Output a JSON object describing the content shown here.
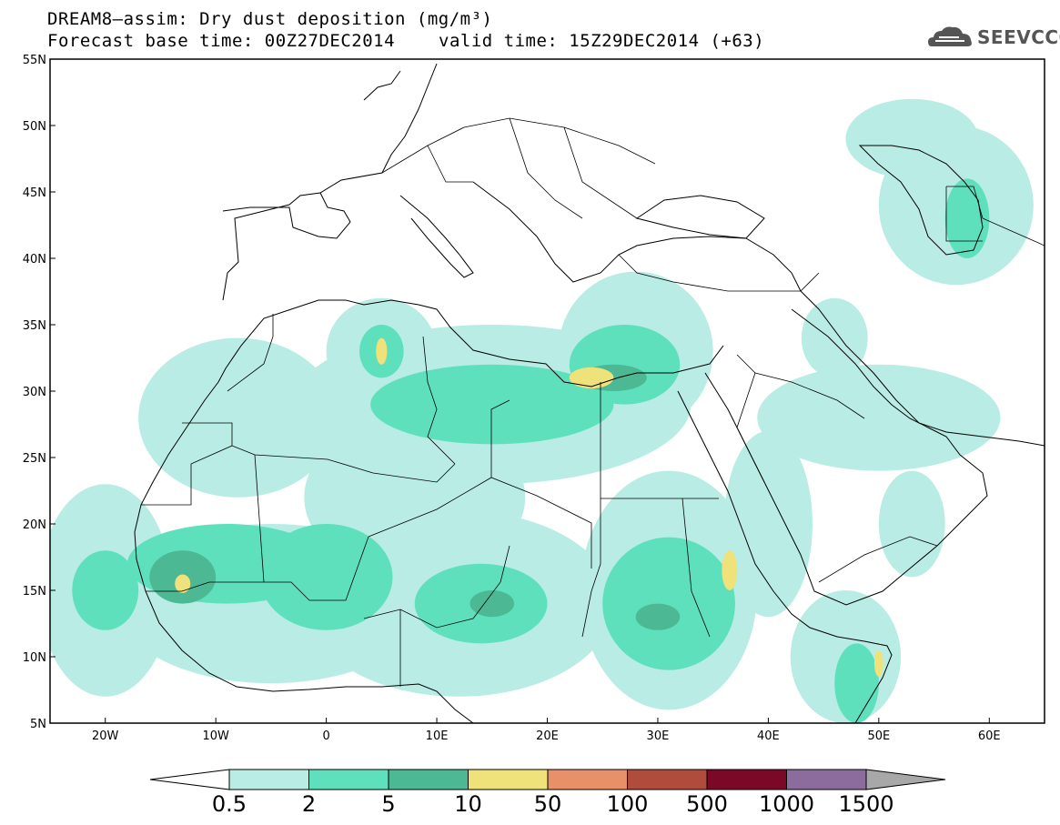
{
  "title": {
    "line1": "DREAM8–assim: Dry dust deposition (mg/m³)",
    "base_time": "Forecast base time: 00Z27DEC2014",
    "valid_time": "valid time: 15Z29DEC2014 (+63)"
  },
  "logo": {
    "text": "SEEVCCC",
    "icon": "cloud-icon"
  },
  "map": {
    "lon_range": [
      -25,
      65
    ],
    "lat_range": [
      5,
      55
    ],
    "lat_ticks": [
      {
        "value": 55,
        "label": "55N"
      },
      {
        "value": 50,
        "label": "50N"
      },
      {
        "value": 45,
        "label": "45N"
      },
      {
        "value": 40,
        "label": "40N"
      },
      {
        "value": 35,
        "label": "35N"
      },
      {
        "value": 30,
        "label": "30N"
      },
      {
        "value": 25,
        "label": "25N"
      },
      {
        "value": 20,
        "label": "20N"
      },
      {
        "value": 15,
        "label": "15N"
      },
      {
        "value": 10,
        "label": "10N"
      },
      {
        "value": 5,
        "label": "5N"
      }
    ],
    "lon_ticks": [
      {
        "value": -20,
        "label": "20W"
      },
      {
        "value": -10,
        "label": "10W"
      },
      {
        "value": 0,
        "label": "0"
      },
      {
        "value": 10,
        "label": "10E"
      },
      {
        "value": 20,
        "label": "20E"
      },
      {
        "value": 30,
        "label": "30E"
      },
      {
        "value": 40,
        "label": "40E"
      },
      {
        "value": 50,
        "label": "50E"
      },
      {
        "value": 60,
        "label": "60E"
      }
    ],
    "palette": [
      "#b8ece4",
      "#5fe0bc",
      "#4cb894",
      "#f0e27a"
    ],
    "fields": [
      {
        "level": 0,
        "cx": -20,
        "cy": 15,
        "rx": 6,
        "ry": 8
      },
      {
        "level": 0,
        "cx": -5,
        "cy": 14,
        "rx": 14,
        "ry": 6
      },
      {
        "level": 0,
        "cx": 12,
        "cy": 14,
        "rx": 14,
        "ry": 7
      },
      {
        "level": 0,
        "cx": 8,
        "cy": 22,
        "rx": 10,
        "ry": 6
      },
      {
        "level": 0,
        "cx": 15,
        "cy": 29,
        "rx": 18,
        "ry": 6
      },
      {
        "level": 0,
        "cx": -8,
        "cy": 28,
        "rx": 9,
        "ry": 6
      },
      {
        "level": 0,
        "cx": 5,
        "cy": 33,
        "rx": 5,
        "ry": 4
      },
      {
        "level": 0,
        "cx": 28,
        "cy": 33,
        "rx": 7,
        "ry": 6
      },
      {
        "level": 0,
        "cx": 31,
        "cy": 15,
        "rx": 8,
        "ry": 9
      },
      {
        "level": 0,
        "cx": 47,
        "cy": 10,
        "rx": 5,
        "ry": 5
      },
      {
        "level": 0,
        "cx": 40,
        "cy": 20,
        "rx": 4,
        "ry": 7
      },
      {
        "level": 0,
        "cx": 50,
        "cy": 28,
        "rx": 11,
        "ry": 4
      },
      {
        "level": 0,
        "cx": 46,
        "cy": 34,
        "rx": 3,
        "ry": 3
      },
      {
        "level": 0,
        "cx": 57,
        "cy": 44,
        "rx": 7,
        "ry": 6
      },
      {
        "level": 0,
        "cx": 53,
        "cy": 49,
        "rx": 6,
        "ry": 3
      },
      {
        "level": 0,
        "cx": 53,
        "cy": 20,
        "rx": 3,
        "ry": 4
      },
      {
        "level": 1,
        "cx": -20,
        "cy": 15,
        "rx": 3,
        "ry": 3
      },
      {
        "level": 1,
        "cx": -9,
        "cy": 17,
        "rx": 9,
        "ry": 3
      },
      {
        "level": 1,
        "cx": 0,
        "cy": 16,
        "rx": 6,
        "ry": 4
      },
      {
        "level": 1,
        "cx": 14,
        "cy": 14,
        "rx": 6,
        "ry": 3
      },
      {
        "level": 1,
        "cx": 15,
        "cy": 29,
        "rx": 11,
        "ry": 3
      },
      {
        "level": 1,
        "cx": 27,
        "cy": 32,
        "rx": 5,
        "ry": 3
      },
      {
        "level": 1,
        "cx": 5,
        "cy": 33,
        "rx": 2,
        "ry": 2
      },
      {
        "level": 1,
        "cx": 31,
        "cy": 14,
        "rx": 6,
        "ry": 5
      },
      {
        "level": 1,
        "cx": 48,
        "cy": 8,
        "rx": 2,
        "ry": 3
      },
      {
        "level": 1,
        "cx": 58,
        "cy": 43,
        "rx": 2,
        "ry": 3
      },
      {
        "level": 2,
        "cx": -13,
        "cy": 16,
        "rx": 3,
        "ry": 2
      },
      {
        "level": 2,
        "cx": 30,
        "cy": 13,
        "rx": 2,
        "ry": 1
      },
      {
        "level": 2,
        "cx": 15,
        "cy": 14,
        "rx": 2,
        "ry": 1
      },
      {
        "level": 2,
        "cx": 26,
        "cy": 31,
        "rx": 3,
        "ry": 1
      },
      {
        "level": 3,
        "cx": 5,
        "cy": 33,
        "rx": 0.5,
        "ry": 1
      },
      {
        "level": 3,
        "cx": 24,
        "cy": 31,
        "rx": 2,
        "ry": 0.8
      },
      {
        "level": 3,
        "cx": -13,
        "cy": 15.5,
        "rx": 0.7,
        "ry": 0.7
      },
      {
        "level": 3,
        "cx": 36.5,
        "cy": 16.5,
        "rx": 0.7,
        "ry": 1.5
      },
      {
        "level": 3,
        "cx": 50,
        "cy": 9.5,
        "rx": 0.4,
        "ry": 1
      }
    ]
  },
  "colorbar": {
    "colors": [
      "#b8ece4",
      "#5fe0bc",
      "#4cb894",
      "#f0e27a",
      "#e89068",
      "#b04c3c",
      "#7c0828",
      "#8c6c9c"
    ],
    "under_color": "#ffffff",
    "over_color": "#a8a8a8",
    "labels": [
      "0.5",
      "2",
      "5",
      "10",
      "50",
      "100",
      "500",
      "1000",
      "1500"
    ]
  }
}
